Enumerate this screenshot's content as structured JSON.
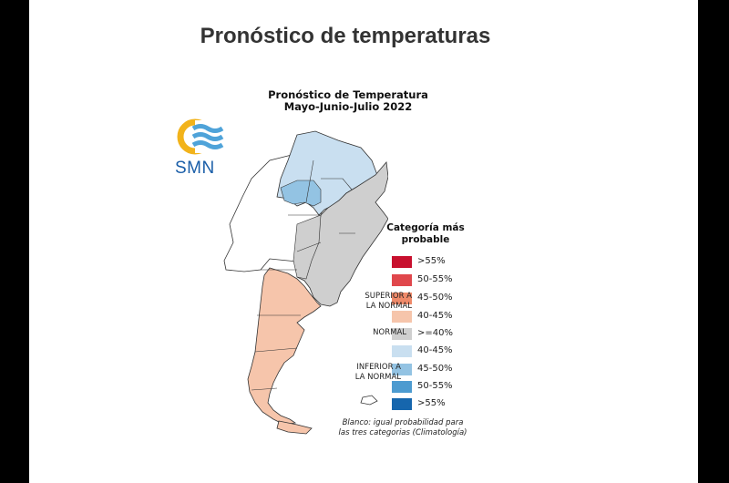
{
  "page": {
    "heading": "Pronóstico de temperaturas"
  },
  "map": {
    "title_line1": "Pronóstico de Temperatura",
    "title_line2": "Mayo-Junio-Julio 2022"
  },
  "logo": {
    "text": "SMN",
    "colors": {
      "ring": "#f2b31b",
      "waves": "#4fa3d9",
      "text": "#1a5ea8"
    }
  },
  "legend": {
    "title_line1": "Categoría más",
    "title_line2": "probable",
    "items": [
      {
        "label": ">55%",
        "color": "#c8102e"
      },
      {
        "label": "50-55%",
        "color": "#e0474c"
      },
      {
        "label": "45-50%",
        "color": "#ef8a6a"
      },
      {
        "label": "40-45%",
        "color": "#f6c5ab"
      },
      {
        "label": ">=40%",
        "color": "#cfcfcf"
      },
      {
        "label": "40-45%",
        "color": "#c9dff0"
      },
      {
        "label": "45-50%",
        "color": "#93c3e3"
      },
      {
        "label": "50-55%",
        "color": "#4d9bd0"
      },
      {
        "label": ">55%",
        "color": "#1666ad"
      }
    ],
    "superior_line1": "SUPERIOR A",
    "superior_line2": "LA NORMAL",
    "normal": "NORMAL",
    "inferior_line1": "INFERIOR A",
    "inferior_line2": "LA NORMAL"
  },
  "footnote": {
    "line1": "Blanco: igual probabilidad para",
    "line2": "las tres categorias (Climatología)"
  },
  "regions": {
    "north_above": "#c9dff0",
    "northeast_normal": "#cfcfcf",
    "patagonia_below": "#f6c5ab",
    "center_equal": "#ffffff"
  }
}
